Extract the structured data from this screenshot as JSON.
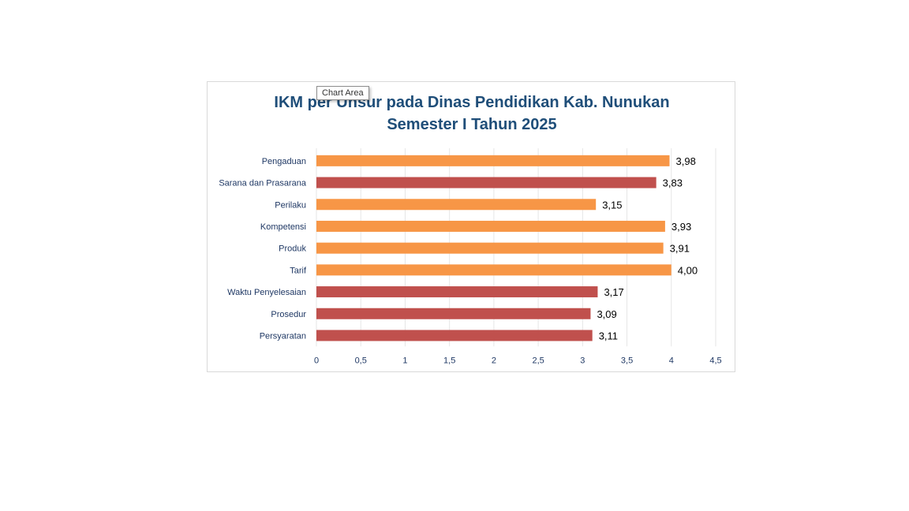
{
  "tooltip": {
    "text": "Chart Area"
  },
  "chart_data": {
    "type": "bar",
    "orientation": "horizontal",
    "title_lines": [
      "IKM per Unsur pada Dinas Pendidikan Kab. Nunukan",
      "Semester I Tahun 2025"
    ],
    "categories": [
      "Pengaduan",
      "Sarana dan Prasarana",
      "Perilaku",
      "Kompetensi",
      "Produk",
      "Tarif",
      "Waktu Penyelesaian",
      "Prosedur",
      "Persyaratan"
    ],
    "values": [
      3.98,
      3.83,
      3.15,
      3.93,
      3.91,
      4.0,
      3.17,
      3.09,
      3.11
    ],
    "data_labels": [
      "3,98",
      "3,83",
      "3,15",
      "3,93",
      "3,91",
      "4,00",
      "3,17",
      "3,09",
      "3,11"
    ],
    "bar_colors": [
      "#f79646",
      "#c0504d",
      "#f79646",
      "#f79646",
      "#f79646",
      "#f79646",
      "#c0504d",
      "#c0504d",
      "#c0504d"
    ],
    "xlim": [
      0,
      4.5
    ],
    "x_ticks": [
      0,
      0.5,
      1,
      1.5,
      2,
      2.5,
      3,
      3.5,
      4,
      4.5
    ],
    "x_tick_labels": [
      "0",
      "0,5",
      "1",
      "1,5",
      "2",
      "2,5",
      "3",
      "3,5",
      "4",
      "4,5"
    ],
    "grid": true,
    "legend": false
  }
}
